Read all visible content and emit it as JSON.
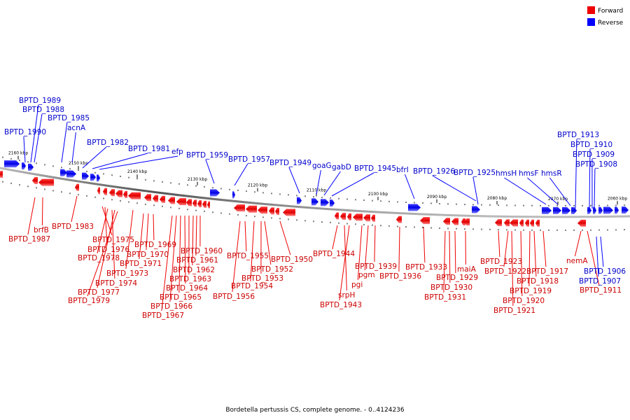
{
  "legend": {
    "forward_label": "Forward",
    "reverse_label": "Reverse",
    "forward_color": "#ee0000",
    "reverse_color": "#0000ff"
  },
  "footer": "Bordetella pertussis CS, complete genome. - 0..4124236",
  "scale_labels": [
    "2160 kbp",
    "2150 kbp",
    "2140 kbp",
    "2130 kbp",
    "2120 kbp",
    "2110 kbp",
    "2100 kbp",
    "2090 kbp",
    "2080 kbp",
    "2070 kbp",
    "2060 kbp"
  ],
  "reverse_genes": [
    "BPTD_1990",
    "BPTD_1989",
    "BPTD_1988",
    "BPTD_1985",
    "acnA",
    "BPTD_1982",
    "BPTD_1981",
    "efp",
    "BPTD_1959",
    "BPTD_1957",
    "BPTD_1949",
    "goaG",
    "gabD",
    "BPTD_1945",
    "bfrI",
    "BPTD_1926",
    "BPTD_1925",
    "hmsH",
    "hmsF",
    "hmsR",
    "BPTD_1913",
    "BPTD_1910",
    "BPTD_1909",
    "BPTD_1908",
    "BPTD_1906",
    "BPTD_1907"
  ],
  "forward_genes": [
    "BPTD_1987",
    "brfB",
    "BPTD_1983",
    "BPTD_1975",
    "BPTD_1976",
    "BPTD_1978",
    "BPTD_1974",
    "BPTD_1977",
    "BPTD_1979",
    "BPTD_1973",
    "BPTD_1971",
    "BPTD_1970",
    "BPTD_1969",
    "BPTD_1960",
    "BPTD_1961",
    "BPTD_1962",
    "BPTD_1963",
    "BPTD_1964",
    "BPTD_1965",
    "BPTD_1966",
    "BPTD_1967",
    "BPTD_1955",
    "BPTD_1954",
    "BPTD_1956",
    "BPTD_1952",
    "BPTD_1953",
    "BPTD_1950",
    "BPTD_1944",
    "BPTD_1939",
    "pgm",
    "pgi",
    "srpH",
    "BPTD_1943",
    "BPTD_1936",
    "BPTD_1933",
    "maiA",
    "BPTD_1929",
    "BPTD_1930",
    "BPTD_1931",
    "BPTD_1923",
    "BPTD_1922",
    "BPTD_1917",
    "BPTD_1918",
    "BPTD_1919",
    "BPTD_1920",
    "BPTD_1921",
    "nemA",
    "BPTD_1911"
  ]
}
